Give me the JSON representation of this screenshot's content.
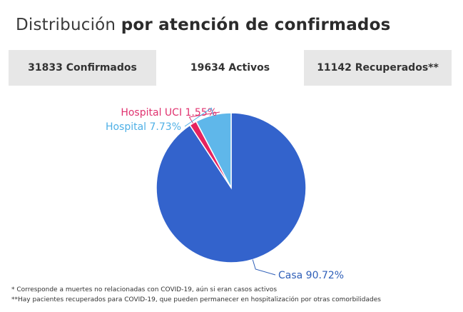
{
  "title": {
    "regular": "Distribución",
    "bold": "por atención de confirmados"
  },
  "tabs": [
    {
      "label": "31833 Confirmados",
      "active": false
    },
    {
      "label": "19634 Activos",
      "active": true
    },
    {
      "label": "11142 Recuperados**",
      "active": false
    }
  ],
  "chart_data": {
    "type": "pie",
    "slices": [
      {
        "label": "Casa 90.72%",
        "name": "Casa",
        "value": 90.72,
        "color": "#3363cc",
        "label_color": "#2f5fb8"
      },
      {
        "label": "Hospital UCI 1.55%",
        "name": "Hospital UCI",
        "value": 1.55,
        "color": "#e6225e",
        "label_color": "#e0326f"
      },
      {
        "label": "Hospital 7.73%",
        "name": "Hospital",
        "value": 7.73,
        "color": "#5fb7ea",
        "label_color": "#4fb0e6"
      }
    ]
  },
  "notes": [
    "* Corresponde a muertes no relacionadas con COVID-19, aún si eran casos activos",
    "**Hay pacientes recuperados para COVID-19, que pueden permanecer en hospitalización por otras comorbilidades"
  ]
}
